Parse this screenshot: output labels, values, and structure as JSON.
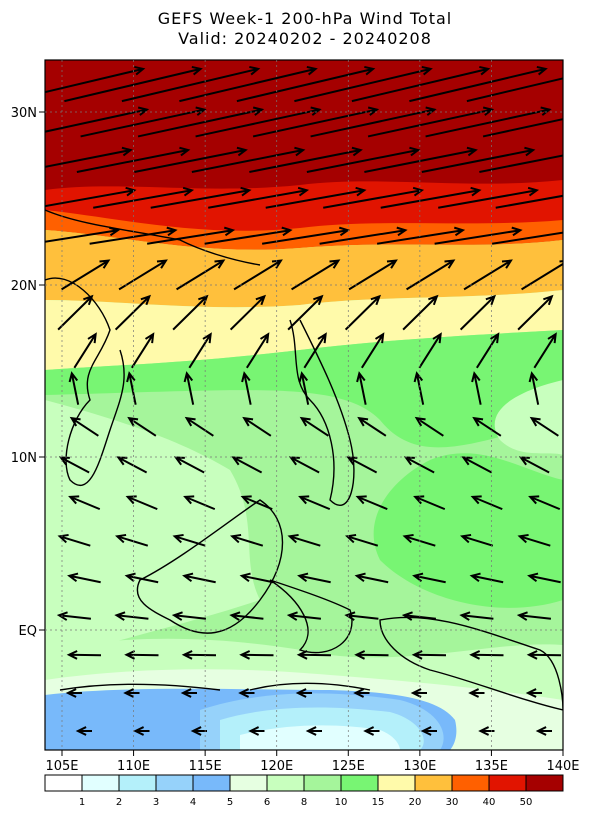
{
  "title": "GEFS Week-1 200-hPa Wind Total",
  "subtitle": "Valid: 20240202 - 20240208",
  "map": {
    "lat_labels": [
      "30N",
      "20N",
      "10N",
      "EQ"
    ],
    "lon_labels": [
      "105E",
      "110E",
      "115E",
      "120E",
      "125E",
      "130E",
      "135E",
      "140E"
    ]
  },
  "colorbar": {
    "levels": [
      1,
      2,
      3,
      4,
      5,
      6,
      8,
      10,
      15,
      20,
      30,
      40,
      50
    ],
    "colors": [
      "#ffffff",
      "#e1ffff",
      "#b4f0fa",
      "#96d2fa",
      "#78b9fa",
      "#e6ffe1",
      "#c8ffbe",
      "#a5f59b",
      "#78f573",
      "#fffaaa",
      "#ffc03c",
      "#ff6000",
      "#e11400",
      "#a50000"
    ]
  }
}
